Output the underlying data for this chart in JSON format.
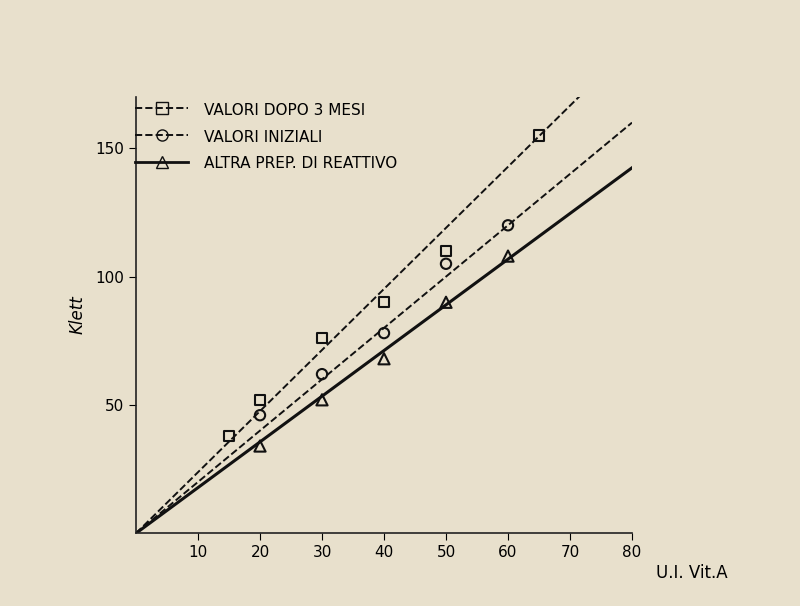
{
  "background_color": "#e8e0cc",
  "ylabel": "Klett",
  "xlabel": "U.I. Vit.A",
  "xlim": [
    0,
    80
  ],
  "ylim": [
    0,
    170
  ],
  "xticks": [
    10,
    20,
    30,
    40,
    50,
    60,
    70,
    80
  ],
  "yticks": [
    50,
    100,
    150
  ],
  "series": [
    {
      "label": "VALORI DOPO 3 MESI",
      "marker": "s",
      "linestyle": "--",
      "color": "#111111",
      "x": [
        15,
        20,
        30,
        40,
        50,
        65
      ],
      "y": [
        38,
        52,
        76,
        90,
        110,
        155
      ]
    },
    {
      "label": "VALORI INIZIALI",
      "marker": "o",
      "linestyle": "--",
      "color": "#111111",
      "x": [
        20,
        30,
        40,
        50,
        60
      ],
      "y": [
        46,
        62,
        78,
        105,
        120
      ]
    },
    {
      "label": "ALTRA PREP. DI REATTIVO",
      "marker": "^",
      "linestyle": "-",
      "color": "#111111",
      "x": [
        20,
        30,
        40,
        50,
        60
      ],
      "y": [
        34,
        52,
        68,
        90,
        108
      ]
    }
  ],
  "trend_lines": [
    {
      "slope": 2.38,
      "intercept": 0,
      "linestyle": "--",
      "color": "#111111",
      "linewidth": 1.4
    },
    {
      "slope": 2.0,
      "intercept": 0,
      "linestyle": "--",
      "color": "#111111",
      "linewidth": 1.4
    },
    {
      "slope": 1.78,
      "intercept": 0,
      "linestyle": "-",
      "color": "#111111",
      "linewidth": 2.2
    }
  ],
  "axis_fontsize": 12,
  "tick_fontsize": 11,
  "legend_fontsize": 11
}
